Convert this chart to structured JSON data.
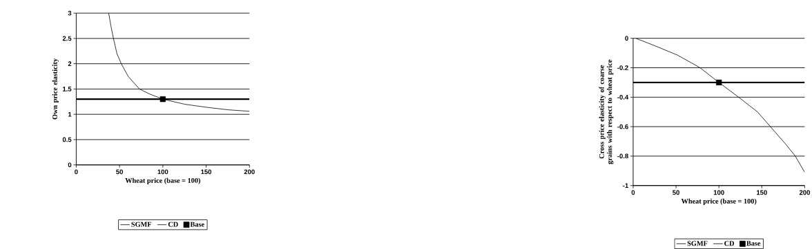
{
  "chart_data": [
    {
      "type": "line",
      "xlabel": "Wheat price (base = 100)",
      "ylabel": "Own price elasticity",
      "xlim": [
        0,
        200
      ],
      "ylim": [
        0,
        3
      ],
      "xticks": [
        0,
        50,
        100,
        150,
        200
      ],
      "yticks": [
        0,
        0.5,
        1,
        1.5,
        2,
        2.5,
        3
      ],
      "grid": "y",
      "legend": "bottom",
      "series": [
        {
          "name": "SGMF",
          "color": "#000000",
          "x": [
            37.5,
            40,
            43,
            47,
            52,
            60,
            73,
            85,
            100,
            125,
            150,
            175,
            200
          ],
          "values": [
            3.0,
            2.75,
            2.5,
            2.2,
            2.0,
            1.75,
            1.5,
            1.4,
            1.3,
            1.2,
            1.14,
            1.09,
            1.06
          ]
        },
        {
          "name": "CD",
          "color": "#000000",
          "x": [
            0,
            200
          ],
          "values": [
            1.3,
            1.3
          ]
        },
        {
          "name": "Base",
          "type": "scatter",
          "marker": "square",
          "color": "#000000",
          "x": [
            100
          ],
          "values": [
            1.3
          ]
        }
      ]
    },
    {
      "type": "line",
      "xlabel": "Wheat price (base = 100)",
      "ylabel": "Cross price elasticity of coarse grains with respect to wheat price",
      "xlim": [
        0,
        200
      ],
      "ylim": [
        -1,
        0
      ],
      "xticks": [
        0,
        50,
        100,
        150,
        200
      ],
      "yticks": [
        -1,
        -0.8,
        -0.6,
        -0.4,
        -0.2,
        0
      ],
      "grid": "y",
      "legend": "bottom",
      "series": [
        {
          "name": "SGMF",
          "color": "#000000",
          "x": [
            3,
            25,
            52,
            78,
            100,
            123,
            145,
            160,
            178,
            189,
            200
          ],
          "values": [
            0,
            -0.05,
            -0.115,
            -0.2,
            -0.3,
            -0.4,
            -0.5,
            -0.6,
            -0.72,
            -0.8,
            -0.91
          ]
        },
        {
          "name": "CD",
          "color": "#000000",
          "x": [
            0,
            200
          ],
          "values": [
            -0.3,
            -0.3
          ]
        },
        {
          "name": "Base",
          "type": "scatter",
          "marker": "square",
          "color": "#000000",
          "x": [
            100
          ],
          "values": [
            -0.3
          ]
        }
      ]
    }
  ]
}
